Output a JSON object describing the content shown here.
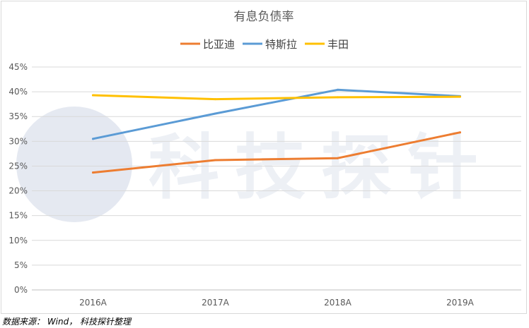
{
  "chart_data": {
    "type": "line",
    "title": "有息负债率",
    "categories": [
      "2016A",
      "2017A",
      "2018A",
      "2019A"
    ],
    "series": [
      {
        "name": "比亚迪",
        "color": "#ED7D31",
        "values": [
          23.7,
          26.2,
          26.6,
          31.8
        ]
      },
      {
        "name": "特斯拉",
        "color": "#5B9BD5",
        "values": [
          30.5,
          35.6,
          40.4,
          39.1
        ]
      },
      {
        "name": "丰田",
        "color": "#FFC000",
        "values": [
          39.3,
          38.5,
          38.9,
          39.0
        ]
      }
    ],
    "yticks": [
      "0%",
      "5%",
      "10%",
      "15%",
      "20%",
      "25%",
      "30%",
      "35%",
      "40%",
      "45%"
    ],
    "ylim": [
      0,
      45
    ],
    "grid": true,
    "legend_position": "top"
  },
  "watermark": {
    "text": "科技探针"
  },
  "source_note": "数据来源： Wind， 科技探针整理"
}
